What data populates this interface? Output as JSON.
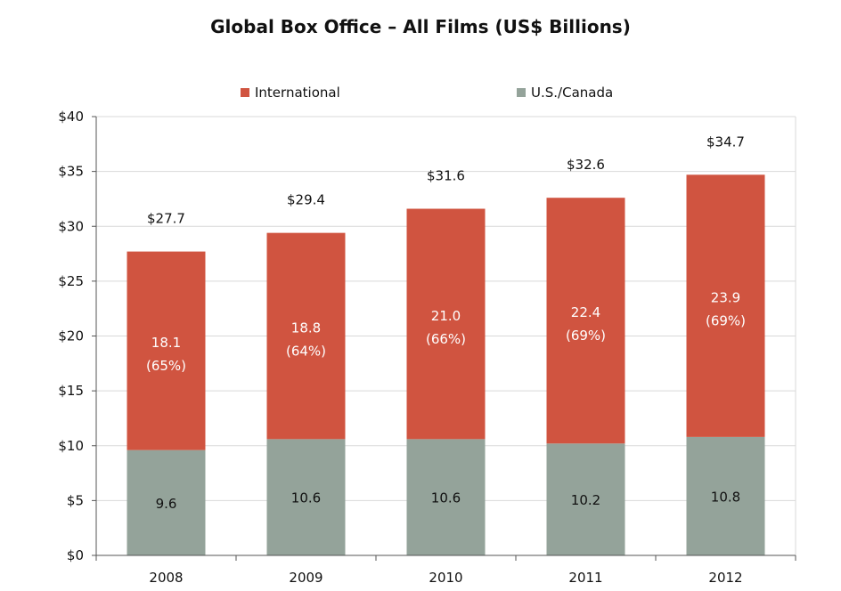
{
  "chart_data": {
    "type": "bar",
    "stacked": true,
    "title": "Global Box Office – All Films (US$ Billions)",
    "categories": [
      "2008",
      "2009",
      "2010",
      "2011",
      "2012"
    ],
    "series": [
      {
        "name": "U.S./Canada",
        "values": [
          9.6,
          10.6,
          10.6,
          10.2,
          10.8
        ],
        "labels": [
          "9.6",
          "10.6",
          "10.6",
          "10.2",
          "10.8"
        ],
        "color": "#94a39a"
      },
      {
        "name": "International",
        "values": [
          18.1,
          18.8,
          21.0,
          22.4,
          23.9
        ],
        "labels": [
          "18.1",
          "18.8",
          "21.0",
          "22.4",
          "23.9"
        ],
        "shares": [
          "(65%)",
          "(64%)",
          "(66%)",
          "(69%)",
          "(69%)"
        ],
        "color": "#d05440"
      }
    ],
    "totals": [
      27.7,
      29.4,
      31.6,
      32.6,
      34.7
    ],
    "total_labels": [
      "$27.7",
      "$29.4",
      "$31.6",
      "$32.6",
      "$34.7"
    ],
    "ylim": [
      0,
      40
    ],
    "yticks": [
      0,
      5,
      10,
      15,
      20,
      25,
      30,
      35,
      40
    ],
    "ytick_labels": [
      "$0",
      "$5",
      "$10",
      "$15",
      "$20",
      "$25",
      "$30",
      "$35",
      "$40"
    ],
    "grid": true,
    "legend": "top"
  }
}
